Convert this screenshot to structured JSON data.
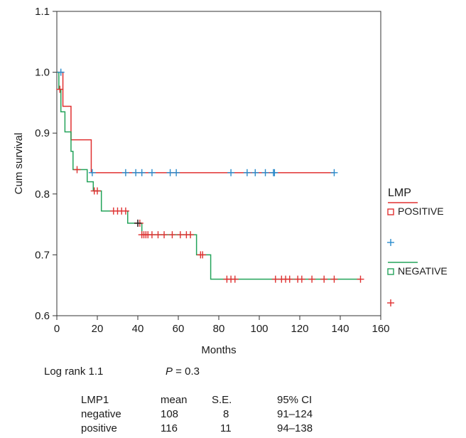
{
  "chart_data": {
    "type": "line",
    "xlabel": "Months",
    "ylabel": "Cum survival",
    "xlim": [
      0,
      160
    ],
    "ylim": [
      0.6,
      1.1
    ],
    "xticks": [
      "0",
      "20",
      "40",
      "60",
      "80",
      "100",
      "120",
      "140",
      "160"
    ],
    "yticks": [
      "0.6",
      "0.7",
      "0.8",
      "0.9",
      "1.0",
      "1.1"
    ],
    "grid": false,
    "legend_position": "right",
    "legend": {
      "title": "LMP",
      "entries": [
        {
          "label": "POSITIVE",
          "color": "#e03030",
          "symbol": "line-square"
        },
        {
          "label": "",
          "color": "#2a8ccc",
          "symbol": "plus"
        },
        {
          "label": "NEGATIVE",
          "color": "#23a35a",
          "symbol": "line-square"
        },
        {
          "label": "",
          "color": "#e03030",
          "symbol": "plus"
        }
      ]
    },
    "series": [
      {
        "name": "POSITIVE",
        "color": "#e03030",
        "censor_color": "#2a8ccc",
        "steps": [
          [
            0,
            1.0
          ],
          [
            3,
            0.944
          ],
          [
            7,
            0.889
          ],
          [
            17,
            0.835
          ],
          [
            137,
            0.835
          ]
        ],
        "censored": [
          2,
          17.5,
          34,
          39,
          42,
          47,
          56,
          59,
          86,
          94,
          98,
          103,
          107,
          107.5,
          137
        ]
      },
      {
        "name": "NEGATIVE",
        "color": "#23a35a",
        "censor_color": "#e03030",
        "steps": [
          [
            0,
            1.0
          ],
          [
            1,
            0.972
          ],
          [
            2,
            0.935
          ],
          [
            4,
            0.902
          ],
          [
            7,
            0.87
          ],
          [
            8,
            0.84
          ],
          [
            15,
            0.82
          ],
          [
            18,
            0.805
          ],
          [
            22,
            0.772
          ],
          [
            35,
            0.752
          ],
          [
            42,
            0.733
          ],
          [
            69,
            0.7
          ],
          [
            76,
            0.66
          ],
          [
            150,
            0.66
          ]
        ],
        "censored": [
          1.5,
          10,
          18.5,
          20,
          28,
          30,
          32,
          34,
          40,
          41,
          42,
          43,
          44,
          45,
          47,
          50,
          53,
          57,
          61,
          64,
          66,
          71,
          72,
          84,
          86,
          88,
          108,
          111,
          113,
          115,
          119,
          121,
          126,
          132,
          137,
          150
        ],
        "extra_censored": [
          {
            "x": 40,
            "y": 0.752,
            "color": "#222222"
          }
        ]
      }
    ]
  },
  "stats": {
    "logrank_label": "Log rank 1.1",
    "p_symbol": "P",
    "p_value": " = 0.3",
    "headers": [
      "LMP1",
      "mean",
      "S.E.",
      "95% CI"
    ],
    "rows": [
      [
        "negative",
        "108",
        "8",
        "91–124"
      ],
      [
        "positive",
        "116",
        "11",
        "94–138"
      ]
    ]
  }
}
